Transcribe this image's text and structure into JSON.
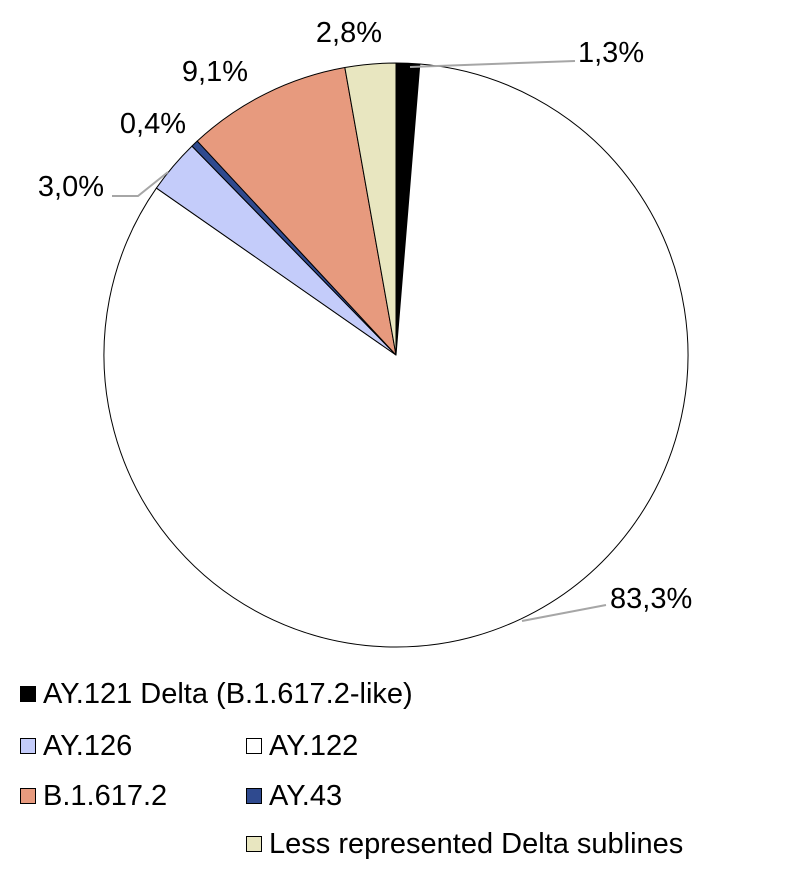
{
  "chart_data": {
    "type": "pie",
    "slices": [
      {
        "name": "AY.121 Delta (B.1.617.2-like)",
        "value": 1.3,
        "label": "1,3%",
        "color": "#000000"
      },
      {
        "name": "AY.122",
        "value": 83.3,
        "label": "83,3%",
        "color": "#ffffff"
      },
      {
        "name": "AY.126",
        "value": 3.0,
        "label": "3,0%",
        "color": "#c4ccfa"
      },
      {
        "name": "AY.43",
        "value": 0.4,
        "label": "0,4%",
        "color": "#2f4a8f"
      },
      {
        "name": "B.1.617.2",
        "value": 9.1,
        "label": "9,1%",
        "color": "#e79a7e"
      },
      {
        "name": "Less represented Delta sublines",
        "value": 2.8,
        "label": "2,8%",
        "color": "#e8e6c0"
      }
    ],
    "direction": "clockwise",
    "start_angle": "12 o'clock",
    "legend_position": "bottom"
  },
  "legend": {
    "items": [
      {
        "label": "AY.121 Delta (B.1.617.2-like)",
        "color": "#000000"
      },
      {
        "label": "AY.126",
        "color": "#c4ccfa"
      },
      {
        "label": "AY.122",
        "color": "#ffffff"
      },
      {
        "label": "B.1.617.2",
        "color": "#e79a7e"
      },
      {
        "label": "AY.43",
        "color": "#2f4a8f"
      },
      {
        "label": "Less represented Delta sublines",
        "color": "#e8e6c0"
      }
    ]
  }
}
